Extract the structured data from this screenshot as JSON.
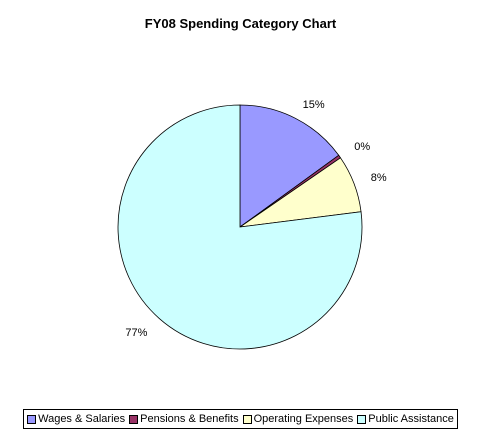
{
  "chart_data": {
    "type": "pie",
    "title": "FY08 Spending Category Chart",
    "categories": [
      "Wages & Salaries",
      "Pensions & Benefits",
      "Operating Expenses",
      "Public Assistance"
    ],
    "values": [
      15,
      0.4,
      7.6,
      77
    ],
    "data_labels": [
      "15%",
      "0%",
      "8%",
      "77%"
    ],
    "colors": [
      "#9999ff",
      "#993366",
      "#ffffcc",
      "#ccffff"
    ],
    "legend_position": "bottom"
  }
}
